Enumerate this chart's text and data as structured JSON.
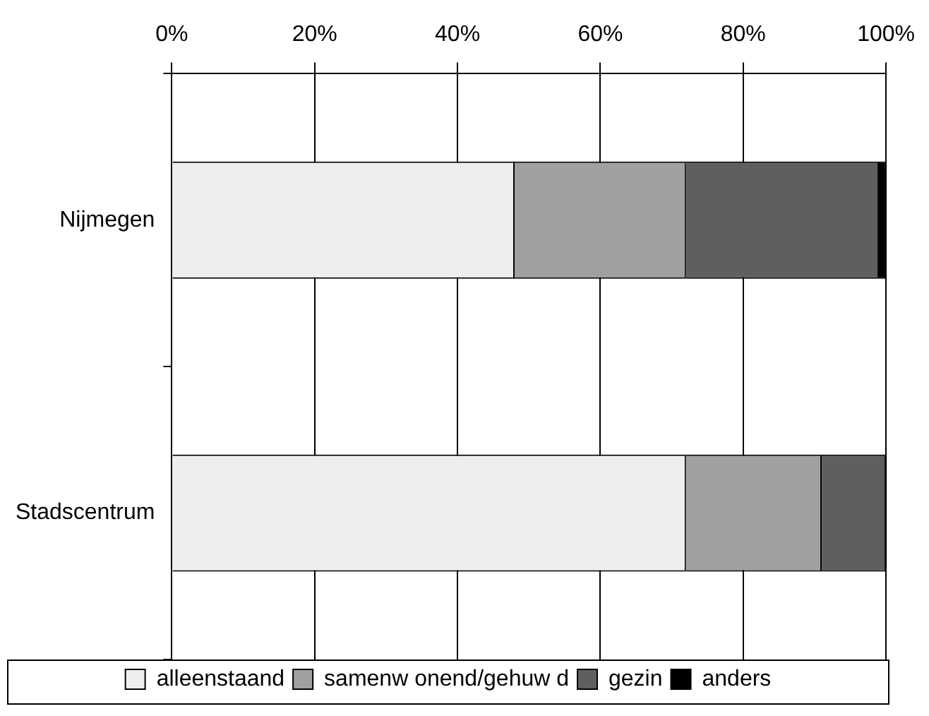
{
  "chart_data": {
    "type": "bar",
    "orientation": "horizontal",
    "stacked": true,
    "categories": [
      "Nijmegen",
      "Stadscentrum"
    ],
    "series": [
      {
        "name": "alleenstaand",
        "color": "#eeeeee",
        "values": [
          48,
          72
        ]
      },
      {
        "name": "samenw onend/gehuw d",
        "color": "#a0a0a0",
        "values": [
          24,
          19
        ]
      },
      {
        "name": "gezin",
        "color": "#5f5f5f",
        "values": [
          27,
          9
        ]
      },
      {
        "name": "anders",
        "color": "#000000",
        "values": [
          1,
          0
        ]
      }
    ],
    "xlim": [
      0,
      100
    ],
    "xticks": [
      {
        "value": 0,
        "label": "0%"
      },
      {
        "value": 20,
        "label": "20%"
      },
      {
        "value": 40,
        "label": "40%"
      },
      {
        "value": 60,
        "label": "60%"
      },
      {
        "value": 80,
        "label": "80%"
      },
      {
        "value": 100,
        "label": "100%"
      }
    ],
    "grid": "x",
    "legend": "bottom"
  }
}
